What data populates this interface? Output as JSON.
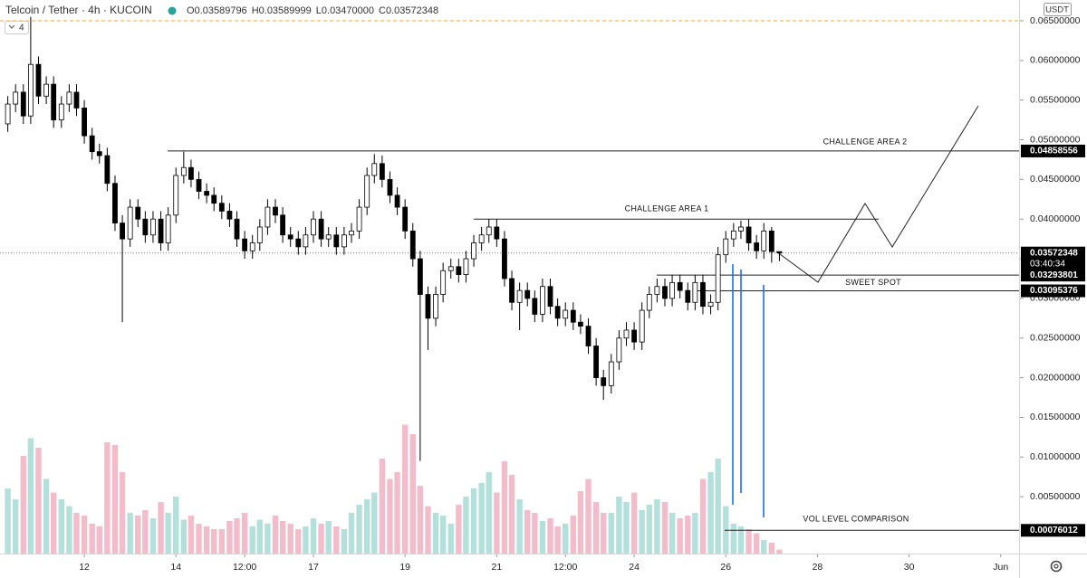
{
  "chart_data": {
    "type": "candlestick",
    "title": "Telcoin / Tether · 4h · KUCOIN",
    "legend": [
      {
        "letter": "O",
        "value": 0.03589796
      },
      {
        "letter": "H",
        "value": 0.03589999
      },
      {
        "letter": "L",
        "value": 0.0347,
        "label": "0.03470000"
      },
      {
        "letter": "C",
        "value": 0.03572348
      }
    ],
    "collapsed_indicators": 4,
    "currency": "USDT",
    "countdown": "03:40:34",
    "up_color": "#ffffff",
    "down_color": "#000000",
    "volume_up_color": "#b4e0dc",
    "volume_down_color": "#f2bccb",
    "x": [
      10.33,
      10.5,
      10.67,
      10.83,
      11,
      11.17,
      11.33,
      11.5,
      11.67,
      11.83,
      12,
      12.17,
      12.33,
      12.5,
      12.67,
      12.83,
      13,
      13.17,
      13.33,
      13.5,
      13.67,
      13.83,
      14,
      14.17,
      14.33,
      14.5,
      14.67,
      14.83,
      15,
      15.17,
      15.33,
      15.5,
      15.67,
      15.83,
      16,
      16.17,
      16.33,
      16.5,
      16.67,
      16.83,
      17,
      17.17,
      17.33,
      17.5,
      17.67,
      17.83,
      18,
      18.17,
      18.33,
      18.5,
      18.67,
      18.83,
      19,
      19.17,
      19.33,
      19.5,
      19.67,
      19.83,
      20,
      20.17,
      20.33,
      20.5,
      20.67,
      20.83,
      21,
      21.17,
      21.33,
      21.5,
      21.67,
      21.83,
      22,
      22.17,
      22.33,
      22.5,
      22.67,
      22.83,
      23,
      23.17,
      23.33,
      23.5,
      23.67,
      23.83,
      24,
      24.17,
      24.33,
      24.5,
      24.67,
      24.83,
      25,
      25.17,
      25.33,
      25.5,
      25.67,
      25.83,
      26,
      26.17,
      26.33,
      26.5,
      26.67,
      26.83,
      27,
      27.17
    ],
    "open": [
      0.052,
      0.0545,
      0.056,
      0.053,
      0.0595,
      0.0555,
      0.057,
      0.0525,
      0.0545,
      0.056,
      0.054,
      0.0505,
      0.0485,
      0.048,
      0.0445,
      0.0395,
      0.0375,
      0.0415,
      0.04,
      0.038,
      0.04,
      0.037,
      0.0405,
      0.0455,
      0.0465,
      0.045,
      0.0435,
      0.043,
      0.042,
      0.041,
      0.04,
      0.0375,
      0.036,
      0.037,
      0.039,
      0.0415,
      0.0405,
      0.038,
      0.0375,
      0.0365,
      0.038,
      0.04,
      0.0375,
      0.038,
      0.0365,
      0.038,
      0.0385,
      0.0415,
      0.0455,
      0.047,
      0.045,
      0.043,
      0.0415,
      0.0385,
      0.035,
      0.0305,
      0.0275,
      0.0305,
      0.0335,
      0.034,
      0.033,
      0.035,
      0.037,
      0.038,
      0.039,
      0.0375,
      0.0325,
      0.0295,
      0.031,
      0.03,
      0.028,
      0.0315,
      0.029,
      0.0275,
      0.0285,
      0.027,
      0.0265,
      0.024,
      0.02,
      0.019,
      0.022,
      0.025,
      0.026,
      0.0245,
      0.0285,
      0.0305,
      0.0315,
      0.03,
      0.032,
      0.031,
      0.0295,
      0.032,
      0.029,
      0.0295,
      0.0355,
      0.0375,
      0.0385,
      0.039,
      0.037,
      0.036,
      0.0385,
      0.03589796
    ],
    "high": [
      0.0555,
      0.057,
      0.057,
      0.0655,
      0.0605,
      0.058,
      0.058,
      0.0555,
      0.057,
      0.057,
      0.055,
      0.0515,
      0.0495,
      0.049,
      0.0455,
      0.0405,
      0.0425,
      0.0425,
      0.041,
      0.041,
      0.041,
      0.0415,
      0.0465,
      0.0485,
      0.0475,
      0.046,
      0.0445,
      0.044,
      0.043,
      0.042,
      0.041,
      0.0385,
      0.038,
      0.04,
      0.0425,
      0.0425,
      0.0415,
      0.039,
      0.0385,
      0.039,
      0.041,
      0.041,
      0.039,
      0.039,
      0.039,
      0.0395,
      0.0425,
      0.0465,
      0.0482,
      0.048,
      0.046,
      0.044,
      0.0425,
      0.0395,
      0.036,
      0.0315,
      0.0315,
      0.0345,
      0.035,
      0.035,
      0.036,
      0.038,
      0.039,
      0.04,
      0.04,
      0.0385,
      0.0335,
      0.032,
      0.032,
      0.031,
      0.0325,
      0.0325,
      0.03,
      0.0295,
      0.0295,
      0.028,
      0.0275,
      0.025,
      0.021,
      0.023,
      0.026,
      0.027,
      0.027,
      0.0295,
      0.0315,
      0.0325,
      0.0325,
      0.033,
      0.033,
      0.032,
      0.033,
      0.033,
      0.0305,
      0.0365,
      0.0385,
      0.0395,
      0.0398,
      0.04,
      0.038,
      0.0395,
      0.039,
      0.03589999
    ],
    "low": [
      0.051,
      0.0535,
      0.052,
      0.052,
      0.0545,
      0.0545,
      0.0515,
      0.0515,
      0.0535,
      0.053,
      0.0495,
      0.0475,
      0.047,
      0.0435,
      0.0385,
      0.027,
      0.0365,
      0.039,
      0.037,
      0.037,
      0.036,
      0.036,
      0.0395,
      0.0445,
      0.044,
      0.0425,
      0.042,
      0.041,
      0.04,
      0.039,
      0.0365,
      0.035,
      0.035,
      0.036,
      0.038,
      0.0395,
      0.037,
      0.0365,
      0.0355,
      0.0355,
      0.037,
      0.0365,
      0.0365,
      0.0355,
      0.0355,
      0.037,
      0.0375,
      0.0405,
      0.0445,
      0.044,
      0.042,
      0.0405,
      0.0375,
      0.034,
      0.0095,
      0.0235,
      0.0265,
      0.0295,
      0.0325,
      0.032,
      0.032,
      0.034,
      0.036,
      0.037,
      0.0365,
      0.0315,
      0.0285,
      0.026,
      0.029,
      0.027,
      0.027,
      0.028,
      0.0265,
      0.0265,
      0.026,
      0.0255,
      0.023,
      0.019,
      0.0172,
      0.018,
      0.021,
      0.024,
      0.0235,
      0.0235,
      0.0275,
      0.0295,
      0.029,
      0.029,
      0.03,
      0.0285,
      0.0285,
      0.028,
      0.028,
      0.0285,
      0.0345,
      0.0365,
      0.0375,
      0.036,
      0.035,
      0.035,
      0.0345,
      0.0347
    ],
    "close": [
      0.0545,
      0.056,
      0.053,
      0.0595,
      0.0555,
      0.057,
      0.0525,
      0.0545,
      0.056,
      0.054,
      0.0505,
      0.0485,
      0.048,
      0.0445,
      0.0395,
      0.0375,
      0.0415,
      0.04,
      0.038,
      0.04,
      0.037,
      0.0405,
      0.0455,
      0.0465,
      0.045,
      0.0435,
      0.043,
      0.042,
      0.041,
      0.04,
      0.0375,
      0.036,
      0.037,
      0.039,
      0.0415,
      0.0405,
      0.038,
      0.0375,
      0.0365,
      0.038,
      0.04,
      0.0375,
      0.038,
      0.0365,
      0.038,
      0.0385,
      0.0415,
      0.0455,
      0.047,
      0.045,
      0.043,
      0.0415,
      0.0385,
      0.035,
      0.0305,
      0.0275,
      0.0305,
      0.0335,
      0.034,
      0.033,
      0.035,
      0.037,
      0.038,
      0.039,
      0.0375,
      0.0325,
      0.0295,
      0.031,
      0.03,
      0.028,
      0.0315,
      0.029,
      0.0275,
      0.0285,
      0.027,
      0.0265,
      0.024,
      0.02,
      0.019,
      0.022,
      0.025,
      0.026,
      0.0245,
      0.0285,
      0.0305,
      0.0315,
      0.03,
      0.032,
      0.031,
      0.0295,
      0.032,
      0.029,
      0.0295,
      0.0355,
      0.0375,
      0.0385,
      0.039,
      0.037,
      0.036,
      0.0385,
      0.0359,
      0.03572348
    ],
    "volume": [
      48,
      40,
      72,
      85,
      78,
      55,
      45,
      40,
      35,
      30,
      28,
      22,
      20,
      82,
      80,
      60,
      30,
      28,
      32,
      26,
      38,
      30,
      42,
      25,
      28,
      22,
      20,
      18,
      18,
      24,
      26,
      30,
      20,
      25,
      22,
      28,
      24,
      22,
      18,
      20,
      26,
      22,
      24,
      20,
      18,
      30,
      36,
      40,
      45,
      70,
      55,
      60,
      95,
      88,
      50,
      35,
      30,
      28,
      22,
      36,
      42,
      48,
      52,
      60,
      45,
      68,
      58,
      40,
      32,
      30,
      24,
      26,
      20,
      22,
      28,
      46,
      55,
      38,
      30,
      30,
      42,
      38,
      45,
      32,
      36,
      40,
      38,
      30,
      26,
      28,
      30,
      55,
      60,
      70,
      35,
      22,
      20,
      18,
      15,
      10,
      8,
      3
    ],
    "volume_ylim": [
      0,
      100
    ],
    "xlim": [
      10.16,
      32.4
    ],
    "xticks": [
      12,
      14,
      {
        "value": 15.5,
        "label": "12:00"
      },
      17,
      19,
      21,
      {
        "value": 22.5,
        "label": "12:00"
      },
      24,
      26,
      28,
      30,
      {
        "value": 32,
        "label": "Jun"
      }
    ],
    "ylim": [
      -0.00217,
      0.06762
    ],
    "yticks": [
      {
        "value": 0.065,
        "label": "0.06500000"
      },
      {
        "value": 0.06,
        "label": "0.06000000"
      },
      {
        "value": 0.055,
        "label": "0.05500000"
      },
      {
        "value": 0.05,
        "label": "0.05000000"
      },
      {
        "value": 0.045,
        "label": "0.04500000"
      },
      {
        "value": 0.04,
        "label": "0.04000000"
      },
      {
        "value": 0.035,
        "label": "0.03500000"
      },
      {
        "value": 0.03,
        "label": "0.03000000"
      },
      {
        "value": 0.025,
        "label": "0.02500000"
      },
      {
        "value": 0.02,
        "label": "0.02000000"
      },
      {
        "value": 0.015,
        "label": "0.01500000"
      },
      {
        "value": 0.01,
        "label": "0.01000000"
      },
      {
        "value": 0.005,
        "label": "0.00500000"
      }
    ],
    "levels": [
      {
        "text": "CHALLENGE AREA 2",
        "value": 0.04858556,
        "axis_label": true
      },
      {
        "text": "CHALLENGE AREA 1",
        "value": 0.04,
        "axis_label": false
      },
      {
        "text": "SWEET SPOT",
        "value": 0.03293801,
        "lower": 0.03095376,
        "axis_label": true
      },
      {
        "text": "VOL LEVEL COMPARISON",
        "value": 0.00076012,
        "axis_label": true
      }
    ]
  }
}
